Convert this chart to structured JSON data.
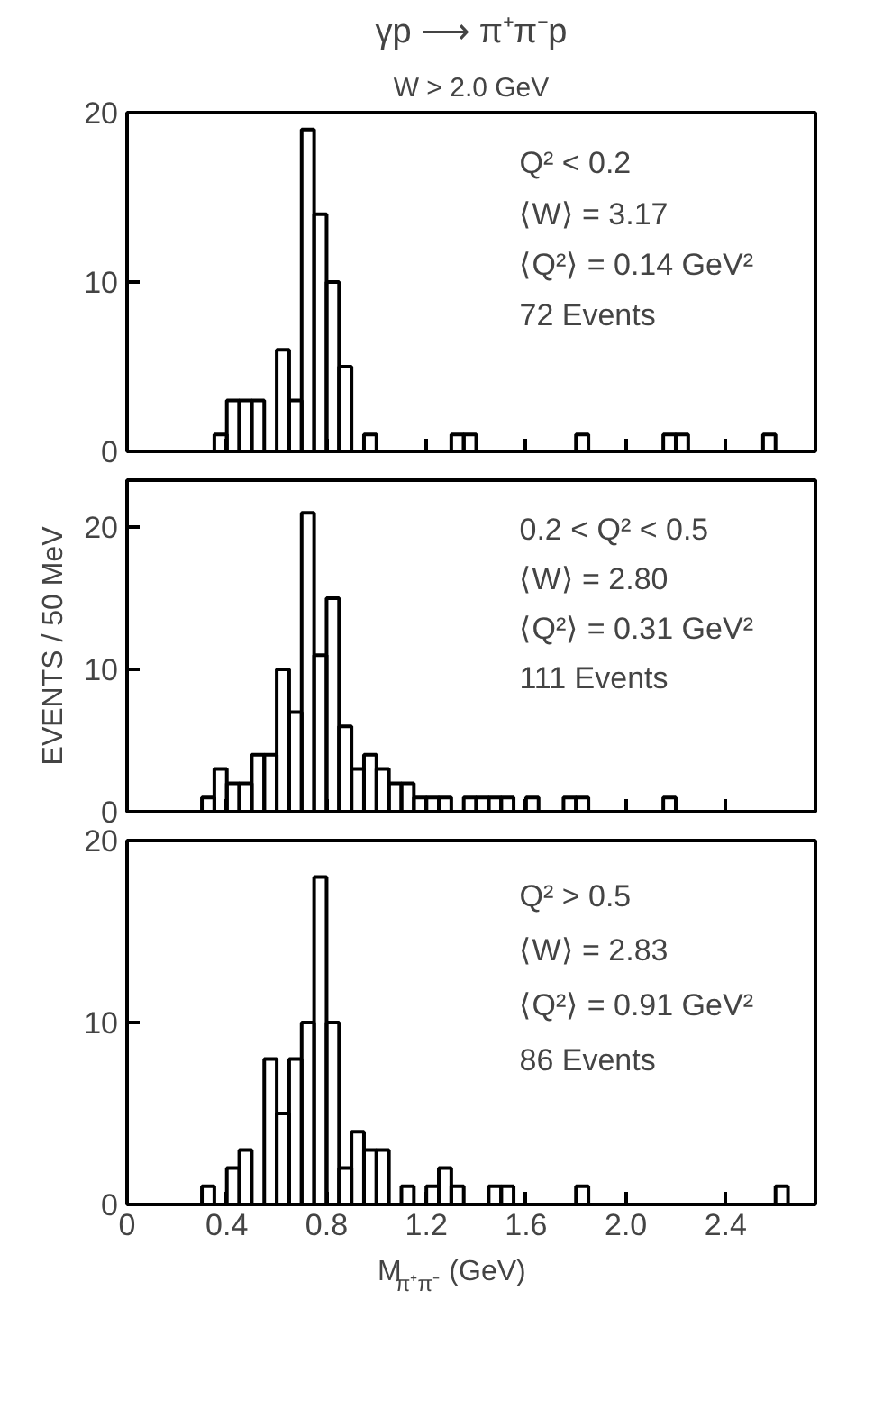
{
  "chart_data": [
    {
      "type": "histogram",
      "title": "γp ⟶ π⁺π⁻p",
      "subtitle": "W > 2.0 GeV",
      "bins": [
        0.3,
        0.35,
        0.4,
        0.45,
        0.5,
        0.55,
        0.6,
        0.65,
        0.7,
        0.75,
        0.8,
        0.85,
        0.9,
        0.95,
        1.0,
        1.05,
        1.1,
        1.15,
        1.2,
        1.25,
        1.3,
        1.35,
        1.4,
        1.45,
        1.5,
        1.55,
        1.6,
        1.65,
        1.7,
        1.75,
        1.8,
        1.85,
        1.9,
        1.95,
        2.0,
        2.05,
        2.1,
        2.15,
        2.2,
        2.25,
        2.3,
        2.35,
        2.4,
        2.45,
        2.5,
        2.55,
        2.6,
        2.65,
        2.7
      ],
      "values": [
        0,
        1,
        3,
        3,
        3,
        0,
        6,
        3,
        19,
        14,
        10,
        5,
        0,
        1,
        0,
        0,
        0,
        0,
        0,
        0,
        1,
        1,
        0,
        0,
        0,
        0,
        0,
        0,
        0,
        0,
        1,
        0,
        0,
        0,
        0,
        0,
        0,
        1,
        1,
        0,
        0,
        0,
        0,
        0,
        0,
        1,
        0,
        0
      ],
      "color": "#000000",
      "xlim": [
        0,
        2.76
      ],
      "xticks": [
        0,
        0.4,
        0.8,
        1.2,
        1.6,
        2.0,
        2.4
      ],
      "ylim": [
        0,
        20
      ],
      "yticks": [
        0,
        10,
        20
      ],
      "tick_labels": "y",
      "grid": false,
      "annotations": [
        "Q² < 0.2",
        "⟨W⟩ = 3.17",
        "⟨Q²⟩ = 0.14 GeV²",
        "72 Events"
      ]
    },
    {
      "type": "histogram",
      "ylabel": "EVENTS / 50 MeV",
      "bins": [
        0.3,
        0.35,
        0.4,
        0.45,
        0.5,
        0.55,
        0.6,
        0.65,
        0.7,
        0.75,
        0.8,
        0.85,
        0.9,
        0.95,
        1.0,
        1.05,
        1.1,
        1.15,
        1.2,
        1.25,
        1.3,
        1.35,
        1.4,
        1.45,
        1.5,
        1.55,
        1.6,
        1.65,
        1.7,
        1.75,
        1.8,
        1.85,
        1.9,
        1.95,
        2.0,
        2.05,
        2.1,
        2.15,
        2.2,
        2.25,
        2.3,
        2.35,
        2.4,
        2.45,
        2.5,
        2.55,
        2.6,
        2.65,
        2.7
      ],
      "values": [
        1,
        3,
        2,
        2,
        4,
        4,
        10,
        7,
        21,
        11,
        15,
        6,
        3,
        4,
        3,
        2,
        2,
        1,
        1,
        1,
        0,
        1,
        1,
        1,
        1,
        0,
        1,
        0,
        0,
        1,
        1,
        0,
        0,
        0,
        0,
        0,
        0,
        1,
        0,
        0,
        0,
        0,
        0,
        0,
        0,
        0,
        0,
        0
      ],
      "color": "#000000",
      "xlim": [
        0,
        2.76
      ],
      "xticks": [
        0,
        0.4,
        0.8,
        1.2,
        1.6,
        2.0,
        2.4
      ],
      "ylim": [
        0,
        23.3
      ],
      "yticks": [
        0,
        10,
        20
      ],
      "tick_labels": "y",
      "grid": false,
      "annotations": [
        "0.2 < Q² < 0.5",
        "⟨W⟩ = 2.80",
        "⟨Q²⟩ = 0.31 GeV²",
        "111 Events"
      ]
    },
    {
      "type": "histogram",
      "xlabel": "M$_{π⁺π⁻}$ (GeV)",
      "bins": [
        0.3,
        0.35,
        0.4,
        0.45,
        0.5,
        0.55,
        0.6,
        0.65,
        0.7,
        0.75,
        0.8,
        0.85,
        0.9,
        0.95,
        1.0,
        1.05,
        1.1,
        1.15,
        1.2,
        1.25,
        1.3,
        1.35,
        1.4,
        1.45,
        1.5,
        1.55,
        1.6,
        1.65,
        1.7,
        1.75,
        1.8,
        1.85,
        1.9,
        1.95,
        2.0,
        2.05,
        2.1,
        2.15,
        2.2,
        2.25,
        2.3,
        2.35,
        2.4,
        2.45,
        2.5,
        2.55,
        2.6,
        2.65,
        2.7
      ],
      "values": [
        1,
        0,
        2,
        3,
        0,
        8,
        5,
        8,
        10,
        18,
        10,
        2,
        4,
        3,
        3,
        0,
        1,
        0,
        1,
        2,
        1,
        0,
        0,
        1,
        1,
        0,
        0,
        0,
        0,
        0,
        1,
        0,
        0,
        0,
        0,
        0,
        0,
        0,
        0,
        0,
        0,
        0,
        0,
        0,
        0,
        0,
        1,
        0
      ],
      "color": "#000000",
      "xlim": [
        0,
        2.76
      ],
      "xticks": [
        0,
        0.4,
        0.8,
        1.2,
        1.6,
        {
          "value": 2.0,
          "label": "2.0"
        },
        2.4
      ],
      "ylim": [
        0,
        20
      ],
      "yticks": [
        0,
        10,
        20
      ],
      "grid": false,
      "annotations": [
        "Q² > 0.5",
        "⟨W⟩ = 2.83",
        "⟨Q²⟩ = 0.91 GeV²",
        "86 Events"
      ]
    }
  ]
}
